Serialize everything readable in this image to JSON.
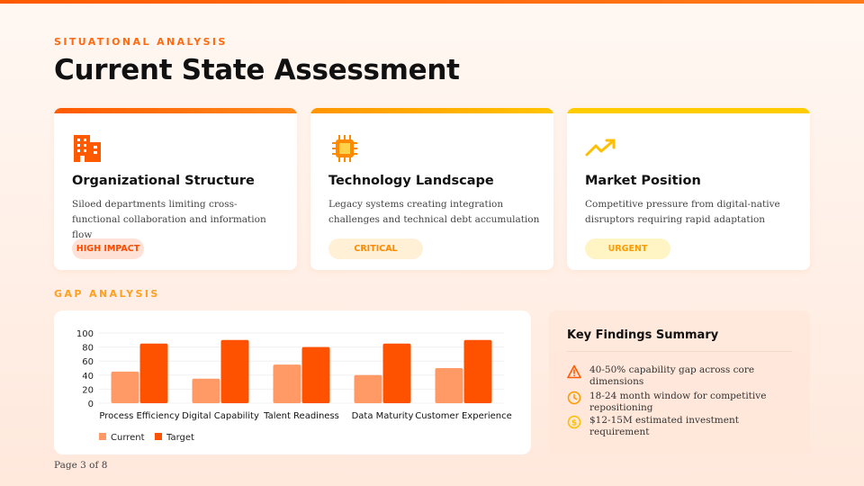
{
  "eyebrow": "SITUATIONAL ANALYSIS",
  "title": "Current State Assessment",
  "cards": [
    {
      "title": "Organizational Structure",
      "desc": "Siloed departments limiting cross-functional collaboration and information flow",
      "badge": "HIGH IMPACT",
      "icon": "building-icon",
      "accent": "#ff5a00"
    },
    {
      "title": "Technology Landscape",
      "desc": "Legacy systems creating integration challenges and technical debt accumulation",
      "badge": "CRITICAL",
      "icon": "chip-icon",
      "accent": "#ff9500"
    },
    {
      "title": "Market Position",
      "desc": "Competitive pressure from digital-native disruptors requiring rapid adaptation",
      "badge": "URGENT",
      "icon": "trend-up-icon",
      "accent": "#ffc400"
    }
  ],
  "gap_label": "GAP ANALYSIS",
  "chart_data": {
    "type": "bar",
    "categories": [
      "Process Efficiency",
      "Digital Capability",
      "Talent Readiness",
      "Data Maturity",
      "Customer Experience"
    ],
    "series": [
      {
        "name": "Current",
        "values": [
          45,
          35,
          55,
          40,
          50
        ],
        "color": "#ff9a66"
      },
      {
        "name": "Target",
        "values": [
          85,
          90,
          80,
          85,
          90
        ],
        "color": "#ff5200"
      }
    ],
    "ylim": [
      0,
      100
    ],
    "yticks": [
      0,
      20,
      40,
      60,
      80,
      100
    ],
    "legend": "bottom-left",
    "grid": true
  },
  "summary": {
    "title": "Key Findings Summary",
    "findings": [
      {
        "text": "40-50% capability gap across core dimensions",
        "icon": "warning-icon"
      },
      {
        "text": "18-24 month window for competitive repositioning",
        "icon": "clock-icon"
      },
      {
        "text": "$12-15M estimated investment requirement",
        "icon": "dollar-icon"
      }
    ]
  },
  "page": "Page 3 of 8"
}
